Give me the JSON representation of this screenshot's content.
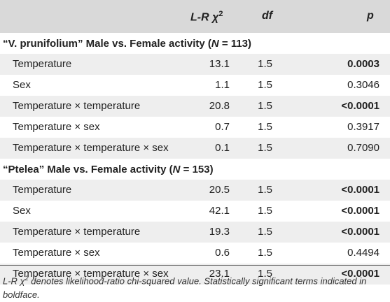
{
  "header": {
    "col_stat": "L-R χ",
    "col_stat_sup": "2",
    "col_df": "df",
    "col_p": "p"
  },
  "groups": [
    {
      "title_pre": "“V. prunifolium” Male vs. Female activity (",
      "title_n": "N",
      "title_post": " = 113)",
      "rows": [
        {
          "term": "Temperature",
          "stat": "13.1",
          "df": "1.5",
          "p": "0.0003",
          "sig": true
        },
        {
          "term": "Sex",
          "stat": "1.1",
          "df": "1.5",
          "p": "0.3046",
          "sig": false
        },
        {
          "term": "Temperature × temperature",
          "stat": "20.8",
          "df": "1.5",
          "p": "<0.0001",
          "sig": true
        },
        {
          "term": "Temperature × sex",
          "stat": "0.7",
          "df": "1.5",
          "p": "0.3917",
          "sig": false
        },
        {
          "term": "Temperature × temperature × sex",
          "stat": "0.1",
          "df": "1.5",
          "p": "0.7090",
          "sig": false
        }
      ]
    },
    {
      "title_pre": "“Ptelea” Male vs. Female activity (",
      "title_n": "N",
      "title_post": " = 153)",
      "rows": [
        {
          "term": "Temperature",
          "stat": "20.5",
          "df": "1.5",
          "p": "<0.0001",
          "sig": true
        },
        {
          "term": "Sex",
          "stat": "42.1",
          "df": "1.5",
          "p": "<0.0001",
          "sig": true
        },
        {
          "term": "Temperature × temperature",
          "stat": "19.3",
          "df": "1.5",
          "p": "<0.0001",
          "sig": true
        },
        {
          "term": "Temperature × sex",
          "stat": "0.6",
          "df": "1.5",
          "p": "0.4494",
          "sig": false
        },
        {
          "term": "Temperature × temperature × sex",
          "stat": "23.1",
          "df": "1.5",
          "p": "<0.0001",
          "sig": true
        }
      ]
    }
  ],
  "footnote": {
    "pre": "L-R χ",
    "sup": "2",
    "post": " denotes likelihood-ratio chi-squared value. Statistically significant terms indicated in boldface."
  }
}
